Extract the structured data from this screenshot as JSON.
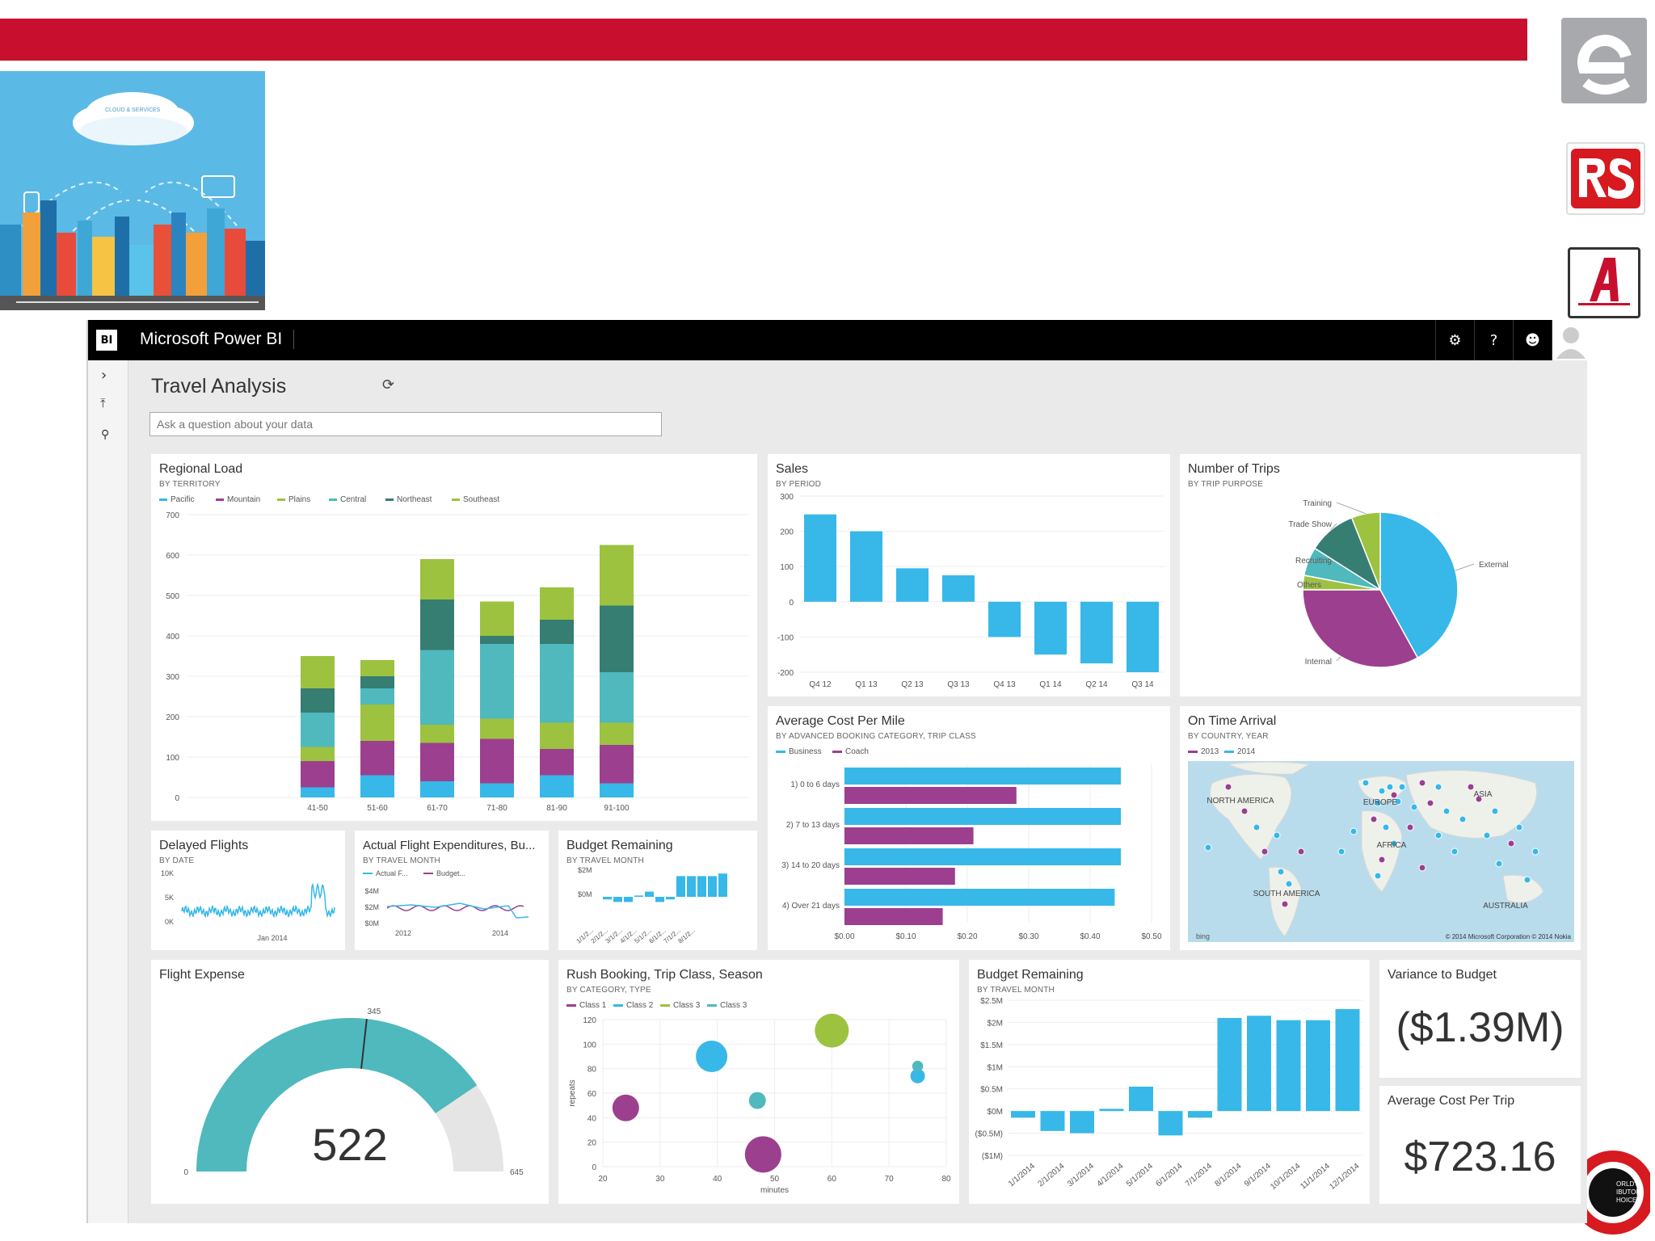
{
  "app": {
    "brand": "Microsoft Power BI",
    "logo_text": "BI",
    "report_title": "Travel Analysis",
    "qa_placeholder": "Ask a question about your data"
  },
  "city_image": {
    "cloud_label": "CLOUD & SERVICES"
  },
  "colors": {
    "red_bar": "#c8102e",
    "blue": "#37b8e8",
    "magenta": "#9c3f8f",
    "lime": "#9cc240",
    "teal": "#4fb9bd",
    "dark_teal": "#367d72",
    "gray": "#e5e5e5"
  },
  "icons": {
    "settings": "gear-icon",
    "help": "question-icon",
    "feedback": "smiley-icon",
    "user": "user-icon",
    "expand": "chevron-right-icon",
    "pin": "pin-icon",
    "search": "search-icon",
    "refresh": "refresh-icon"
  },
  "top_icons": {
    "help": "?"
  },
  "regional_load": {
    "title": "Regional Load",
    "subtitle": "BY TERRITORY",
    "chart_data": {
      "type": "bar",
      "stacked": true,
      "categories": [
        "41-50",
        "51-60",
        "61-70",
        "71-80",
        "81-90",
        "91-100"
      ],
      "ylim": [
        0,
        700
      ],
      "yticks": [
        "0",
        "100",
        "200",
        "300",
        "400",
        "500",
        "600",
        "700"
      ],
      "series": [
        {
          "name": "Pacific",
          "color": "#37b8e8",
          "values": [
            25,
            55,
            40,
            35,
            55,
            35
          ]
        },
        {
          "name": "Mountain",
          "color": "#9c3f8f",
          "values": [
            65,
            85,
            95,
            110,
            65,
            95
          ]
        },
        {
          "name": "Plains",
          "color": "#9cc240",
          "values": [
            35,
            90,
            45,
            50,
            65,
            55
          ]
        },
        {
          "name": "Central",
          "color": "#4fb9bd",
          "values": [
            85,
            40,
            185,
            185,
            195,
            125
          ]
        },
        {
          "name": "Northeast",
          "color": "#367d72",
          "values": [
            60,
            30,
            125,
            20,
            60,
            165
          ]
        },
        {
          "name": "Southeast",
          "color": "#9cc240",
          "values": [
            80,
            40,
            100,
            85,
            80,
            150
          ]
        }
      ]
    }
  },
  "sales": {
    "title": "Sales",
    "subtitle": "BY PERIOD",
    "chart_data": {
      "type": "bar",
      "categories": [
        "Q4 12",
        "Q1 13",
        "Q2 13",
        "Q3 13",
        "Q4 13",
        "Q1 14",
        "Q2 14",
        "Q3 14"
      ],
      "values": [
        248,
        200,
        95,
        75,
        -100,
        -150,
        -175,
        -200
      ],
      "ylim": [
        -200,
        300
      ],
      "yticks": [
        "300",
        "200",
        "100",
        "0",
        "-100",
        "-200"
      ]
    }
  },
  "trips": {
    "title": "Number of Trips",
    "subtitle": "BY TRIP PURPOSE",
    "chart_data": {
      "type": "pie",
      "labels": [
        "External",
        "Internal",
        "Others",
        "Recruiting",
        "Trade Show",
        "Training"
      ],
      "values": [
        42,
        33,
        3,
        6,
        10,
        6
      ],
      "colors": [
        "#37b8e8",
        "#9c3f8f",
        "#9cc240",
        "#4fb9bd",
        "#367d72",
        "#9cc240"
      ]
    }
  },
  "cost_mile": {
    "title": "Average Cost Per Mile",
    "subtitle": "BY ADVANCED BOOKING CATEGORY, TRIP CLASS",
    "chart_data": {
      "type": "bar",
      "orientation": "horizontal",
      "categories": [
        "1) 0 to 6 days",
        "2) 7 to 13 days",
        "3) 14 to 20 days",
        "4) Over 21 days"
      ],
      "series": [
        {
          "name": "Business",
          "color": "#37b8e8",
          "values": [
            0.45,
            0.45,
            0.45,
            0.44
          ]
        },
        {
          "name": "Coach",
          "color": "#9c3f8f",
          "values": [
            0.28,
            0.21,
            0.18,
            0.16
          ]
        }
      ],
      "xlim": [
        0,
        0.5
      ],
      "xticks": [
        "$0.00",
        "$0.10",
        "$0.20",
        "$0.30",
        "$0.40",
        "$0.50"
      ]
    }
  },
  "on_time": {
    "title": "On Time Arrival",
    "subtitle": "BY COUNTRY, YEAR",
    "legend": [
      "2013",
      "2014"
    ],
    "labels": [
      "NORTH AMERICA",
      "EUROPE",
      "ASIA",
      "AFRICA",
      "SOUTH AMERICA",
      "AUSTRALIA"
    ],
    "credit": "© 2014 Microsoft Corporation   © 2014 Nokia",
    "bing": "bing"
  },
  "delayed": {
    "title": "Delayed Flights",
    "subtitle": "BY DATE",
    "yticks": [
      "10K",
      "5K",
      "0K"
    ],
    "xlabel": "Jan 2014"
  },
  "expend": {
    "title": "Actual Flight Expenditures, Bu...",
    "subtitle": "BY TRAVEL MONTH",
    "legend": [
      "Actual F...",
      "Budget..."
    ],
    "yticks": [
      "$4M",
      "$2M",
      "$0M"
    ],
    "xticks": [
      "2012",
      "2014"
    ]
  },
  "budget_small": {
    "title": "Budget Remaining",
    "subtitle": "BY TRAVEL MONTH",
    "yticks": [
      "$2M",
      "$0M"
    ],
    "xticks": [
      "1/1/2...",
      "2/1/2...",
      "3/1/2...",
      "4/1/2...",
      "5/1/2...",
      "6/1/2...",
      "7/1/2...",
      "8/1/2..."
    ]
  },
  "flight_expense": {
    "title": "Flight Expense",
    "value": "522",
    "min": "0",
    "max": "645",
    "target": "345",
    "fill_fraction": 0.81,
    "target_fraction": 0.535
  },
  "rush": {
    "title": "Rush Booking, Trip Class, Season",
    "subtitle": "BY CATEGORY, TYPE",
    "ylabel": "repeats",
    "xlabel": "minutes",
    "chart_data": {
      "type": "scatter",
      "xlim": [
        20,
        80
      ],
      "ylim": [
        0,
        120
      ],
      "xticks": [
        "20",
        "30",
        "40",
        "50",
        "60",
        "70",
        "80"
      ],
      "yticks": [
        "0",
        "20",
        "40",
        "60",
        "80",
        "100",
        "120"
      ],
      "series": [
        {
          "name": "Class 1",
          "color": "#9c3f8f",
          "points": [
            [
              24,
              48,
              22
            ],
            [
              48,
              10,
              30
            ]
          ]
        },
        {
          "name": "Class 2",
          "color": "#37b8e8",
          "points": [
            [
              39,
              90,
              26
            ],
            [
              75,
              74,
              12
            ]
          ]
        },
        {
          "name": "Class 3",
          "color": "#9cc240",
          "points": [
            [
              60,
              111,
              28
            ]
          ]
        },
        {
          "name": "Class 3",
          "color": "#4fb9bd",
          "points": [
            [
              47,
              54,
              14
            ],
            [
              75,
              82,
              9
            ]
          ]
        }
      ]
    }
  },
  "budget_big": {
    "title": "Budget Remaining",
    "subtitle": "BY TRAVEL MONTH",
    "chart_data": {
      "type": "bar",
      "categories": [
        "1/1/2014",
        "2/1/2014",
        "3/1/2014",
        "4/1/2014",
        "5/1/2014",
        "6/1/2014",
        "7/1/2014",
        "8/1/2014",
        "9/1/2014",
        "10/1/2014",
        "11/1/2014",
        "12/1/2014"
      ],
      "values": [
        -0.15,
        -0.45,
        -0.5,
        0.05,
        0.55,
        -0.55,
        -0.15,
        2.1,
        2.15,
        2.05,
        2.05,
        2.3
      ],
      "ylim": [
        -1,
        2.5
      ],
      "yticks": [
        "$2.5M",
        "$2M",
        "$1.5M",
        "$1M",
        "$0.5M",
        "$0M",
        "($0.5M)",
        "($1M)"
      ]
    }
  },
  "variance": {
    "title": "Variance to Budget",
    "value": "($1.39M)"
  },
  "avg_trip": {
    "title": "Average Cost Per Trip",
    "value": "$723.16"
  }
}
